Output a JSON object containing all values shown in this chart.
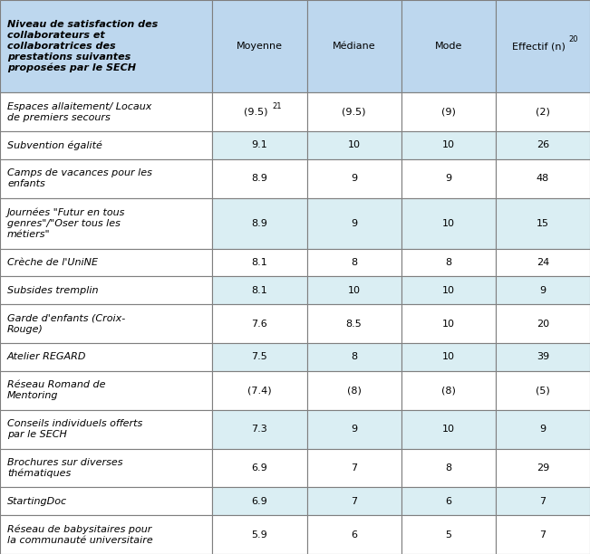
{
  "header_col_text": "Niveau de satisfaction des\ncollaborateurs et\ncollaboratrices des\nprestations suivantes\nproposées par le SECH",
  "col_headers": [
    "Moyenne",
    "Médiane",
    "Mode"
  ],
  "effectif_header_main": "Effectif (n)",
  "effectif_header_sup": "20",
  "rows": [
    {
      "label": "Espaces allaitement/ Locaux\nde premiers secours",
      "values": [
        "(9.5)",
        "(9.5)",
        "(9)",
        "(2)"
      ],
      "moyenne_sup": "21",
      "shaded": false
    },
    {
      "label": "Subvention égalité",
      "values": [
        "9.1",
        "10",
        "10",
        "26"
      ],
      "moyenne_sup": "",
      "shaded": true
    },
    {
      "label": "Camps de vacances pour les\nenfants",
      "values": [
        "8.9",
        "9",
        "9",
        "48"
      ],
      "moyenne_sup": "",
      "shaded": false
    },
    {
      "label": "Journées \"Futur en tous\ngenres\"/\"Oser tous les\nmétiers\"",
      "values": [
        "8.9",
        "9",
        "10",
        "15"
      ],
      "moyenne_sup": "",
      "shaded": true
    },
    {
      "label": "Crèche de l'UniNE",
      "values": [
        "8.1",
        "8",
        "8",
        "24"
      ],
      "moyenne_sup": "",
      "shaded": false
    },
    {
      "label": "Subsides tremplin",
      "values": [
        "8.1",
        "10",
        "10",
        "9"
      ],
      "moyenne_sup": "",
      "shaded": true
    },
    {
      "label": "Garde d'enfants (Croix-\nRouge)",
      "values": [
        "7.6",
        "8.5",
        "10",
        "20"
      ],
      "moyenne_sup": "",
      "shaded": false
    },
    {
      "label": "Atelier REGARD",
      "values": [
        "7.5",
        "8",
        "10",
        "39"
      ],
      "moyenne_sup": "",
      "shaded": true
    },
    {
      "label": "Réseau Romand de\nMentoring",
      "values": [
        "(7.4)",
        "(8)",
        "(8)",
        "(5)"
      ],
      "moyenne_sup": "",
      "shaded": false
    },
    {
      "label": "Conseils individuels offerts\npar le SECH",
      "values": [
        "7.3",
        "9",
        "10",
        "9"
      ],
      "moyenne_sup": "",
      "shaded": true
    },
    {
      "label": "Brochures sur diverses\nthématiques",
      "values": [
        "6.9",
        "7",
        "8",
        "29"
      ],
      "moyenne_sup": "",
      "shaded": false
    },
    {
      "label": "StartingDoc",
      "values": [
        "6.9",
        "7",
        "6",
        "7"
      ],
      "moyenne_sup": "",
      "shaded": true
    },
    {
      "label": "Réseau de babysitaires pour\nla communauté universitaire",
      "values": [
        "5.9",
        "6",
        "5",
        "7"
      ],
      "moyenne_sup": "",
      "shaded": false
    }
  ],
  "col_widths_inches": [
    2.34,
    1.04,
    1.04,
    1.04,
    1.04
  ],
  "header_bg": "#BDD7EE",
  "shaded_bg": "#DAEEF3",
  "white_bg": "#FFFFFF",
  "border_color": "#7F7F7F",
  "text_color": "#000000",
  "header_fontsize": 8.0,
  "cell_fontsize": 8.0,
  "fig_width": 6.51,
  "fig_height": 6.12,
  "dpi": 100
}
